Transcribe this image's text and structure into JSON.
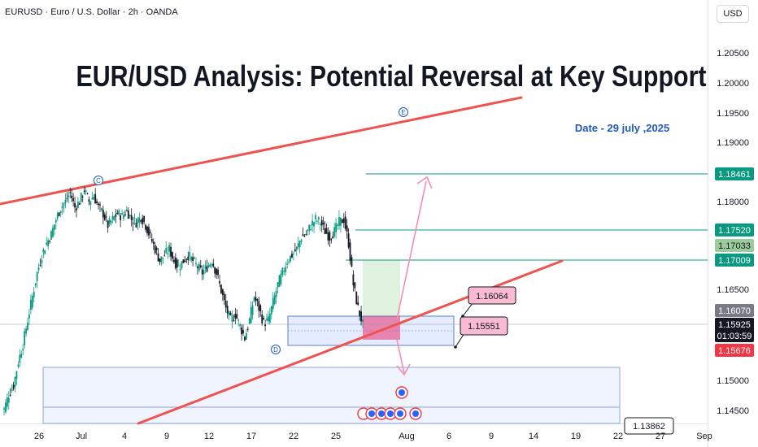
{
  "symbol": "EURUSD · Euro / U.S. Dollar · 2h · OANDA",
  "currency": "USD",
  "chart_data": {
    "type": "candlestick",
    "title": "EUR/USD Analysis: Potential Reversal at Key Support",
    "subtitle": "Date - 29 july ,2025",
    "y_ticks": [
      "1.20500",
      "1.20000",
      "1.19500",
      "1.19000",
      "1.18000",
      "1.16500",
      "1.15000",
      "1.14500"
    ],
    "x_ticks": [
      "26",
      "Jul",
      "4",
      "9",
      "12",
      "17",
      "22",
      "25",
      "Aug",
      "6",
      "9",
      "14",
      "19",
      "22",
      "27",
      "Sep"
    ],
    "price_levels": [
      {
        "label": "1.18461",
        "value": 1.18461,
        "color": "#089981"
      },
      {
        "label": "1.17520",
        "value": 1.1752,
        "color": "#089981"
      },
      {
        "label": "1.17033",
        "value": 1.17033,
        "color": "#9ccc9c"
      },
      {
        "label": "1.17009",
        "value": 1.17009,
        "color": "#089981"
      },
      {
        "label": "1.16070",
        "value": 1.1607,
        "color": "#787b86"
      },
      {
        "label": "1.15925",
        "value": 1.15925,
        "color": "#131722"
      },
      {
        "label": "1.15676",
        "value": 1.15676,
        "color": "#f23645"
      }
    ],
    "countdown": "01:03:59",
    "annotations": [
      {
        "label": "1.16064",
        "value": 1.16064
      },
      {
        "label": "1.15551",
        "value": 1.15551
      },
      {
        "label": "1.13862",
        "value": 1.13862
      }
    ],
    "wave_labels": [
      "C",
      "D",
      "E"
    ],
    "close_series": [
      1.145,
      1.1475,
      1.149,
      1.153,
      1.156,
      1.16,
      1.164,
      1.168,
      1.171,
      1.173,
      1.1745,
      1.177,
      1.179,
      1.18,
      1.1815,
      1.179,
      1.18,
      1.182,
      1.18,
      1.181,
      1.179,
      1.178,
      1.176,
      1.177,
      1.178,
      1.1775,
      1.1785,
      1.177,
      1.1765,
      1.1775,
      1.176,
      1.174,
      1.172,
      1.17,
      1.171,
      1.172,
      1.17,
      1.169,
      1.17,
      1.171,
      1.17,
      1.169,
      1.168,
      1.169,
      1.17,
      1.168,
      1.165,
      1.162,
      1.16,
      1.161,
      1.159,
      1.157,
      1.16,
      1.164,
      1.162,
      1.1595,
      1.16,
      1.163,
      1.166,
      1.168,
      1.17,
      1.171,
      1.172,
      1.174,
      1.1745,
      1.176,
      1.177,
      1.1765,
      1.175,
      1.174,
      1.175,
      1.1765,
      1.177,
      1.173,
      1.166,
      1.162,
      1.1593
    ],
    "colors": {
      "up": "#089981",
      "down": "#131722",
      "trendline": "#ef5350",
      "projection": "#f48fb1",
      "zone": "#2962ff",
      "target_zone": "#4caf50",
      "entry_zone": "#e91e63",
      "title": "#131722",
      "subtitle": "#1e5bb8"
    },
    "ylim": [
      1.14,
      1.212
    ],
    "xlim": [
      "Jun 23",
      "Sep 1"
    ]
  }
}
